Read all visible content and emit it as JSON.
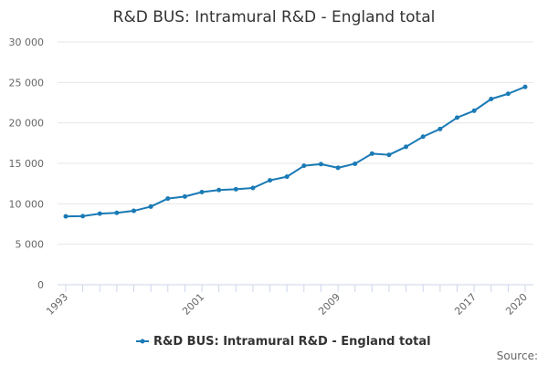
{
  "chart_data": {
    "type": "line",
    "title": "R&D BUS: Intramural R&D - England total",
    "xlabel": "",
    "ylabel": "",
    "ylim": [
      0,
      30000
    ],
    "y_ticks": [
      0,
      5000,
      10000,
      15000,
      20000,
      25000,
      30000
    ],
    "y_tick_labels": [
      "0",
      "5 000",
      "10 000",
      "15 000",
      "20 000",
      "25 000",
      "30 000"
    ],
    "x_tick_labels": [
      "1993",
      "2001",
      "2009",
      "2017",
      "2020"
    ],
    "grid": "horizontal",
    "legend_position": "bottom-center",
    "color": "#1a7ab5",
    "series": [
      {
        "name": "R&D BUS: Intramural R&D - England total",
        "x": [
          1993,
          1994,
          1995,
          1996,
          1997,
          1998,
          1999,
          2000,
          2001,
          2002,
          2003,
          2004,
          2005,
          2006,
          2007,
          2008,
          2009,
          2010,
          2011,
          2012,
          2013,
          2014,
          2015,
          2016,
          2017,
          2018,
          2019,
          2020
        ],
        "values": [
          8450,
          8470,
          8780,
          8880,
          9130,
          9650,
          10650,
          10900,
          11450,
          11700,
          11800,
          11950,
          12900,
          13350,
          14700,
          14900,
          14450,
          14950,
          16200,
          16050,
          17050,
          18300,
          19250,
          20650,
          21500,
          22950,
          23600,
          24450
        ]
      }
    ],
    "source_label": "Source:"
  }
}
